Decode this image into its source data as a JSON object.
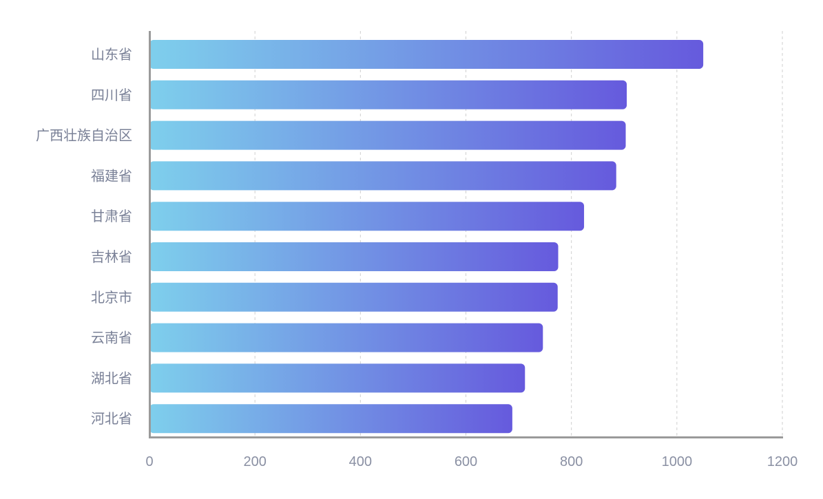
{
  "chart_data": {
    "type": "bar",
    "orientation": "horizontal",
    "categories": [
      "山东省",
      "四川省",
      "广西壮族自治区",
      "福建省",
      "甘肃省",
      "吉林省",
      "北京市",
      "云南省",
      "湖北省",
      "河北省"
    ],
    "values": [
      1050,
      905,
      903,
      885,
      824,
      775,
      774,
      746,
      712,
      688
    ],
    "xlim": [
      0,
      1200
    ],
    "xticks": [
      "0",
      "200",
      "400",
      "600",
      "800",
      "1000",
      "1200"
    ],
    "title": "",
    "xlabel": "",
    "ylabel": "",
    "grid": "vertical dashed",
    "colors": {
      "bar_start": "#7ecfec",
      "bar_end": "#665add",
      "axis": "#9a9a9a",
      "grid": "#cfcfcf"
    }
  }
}
